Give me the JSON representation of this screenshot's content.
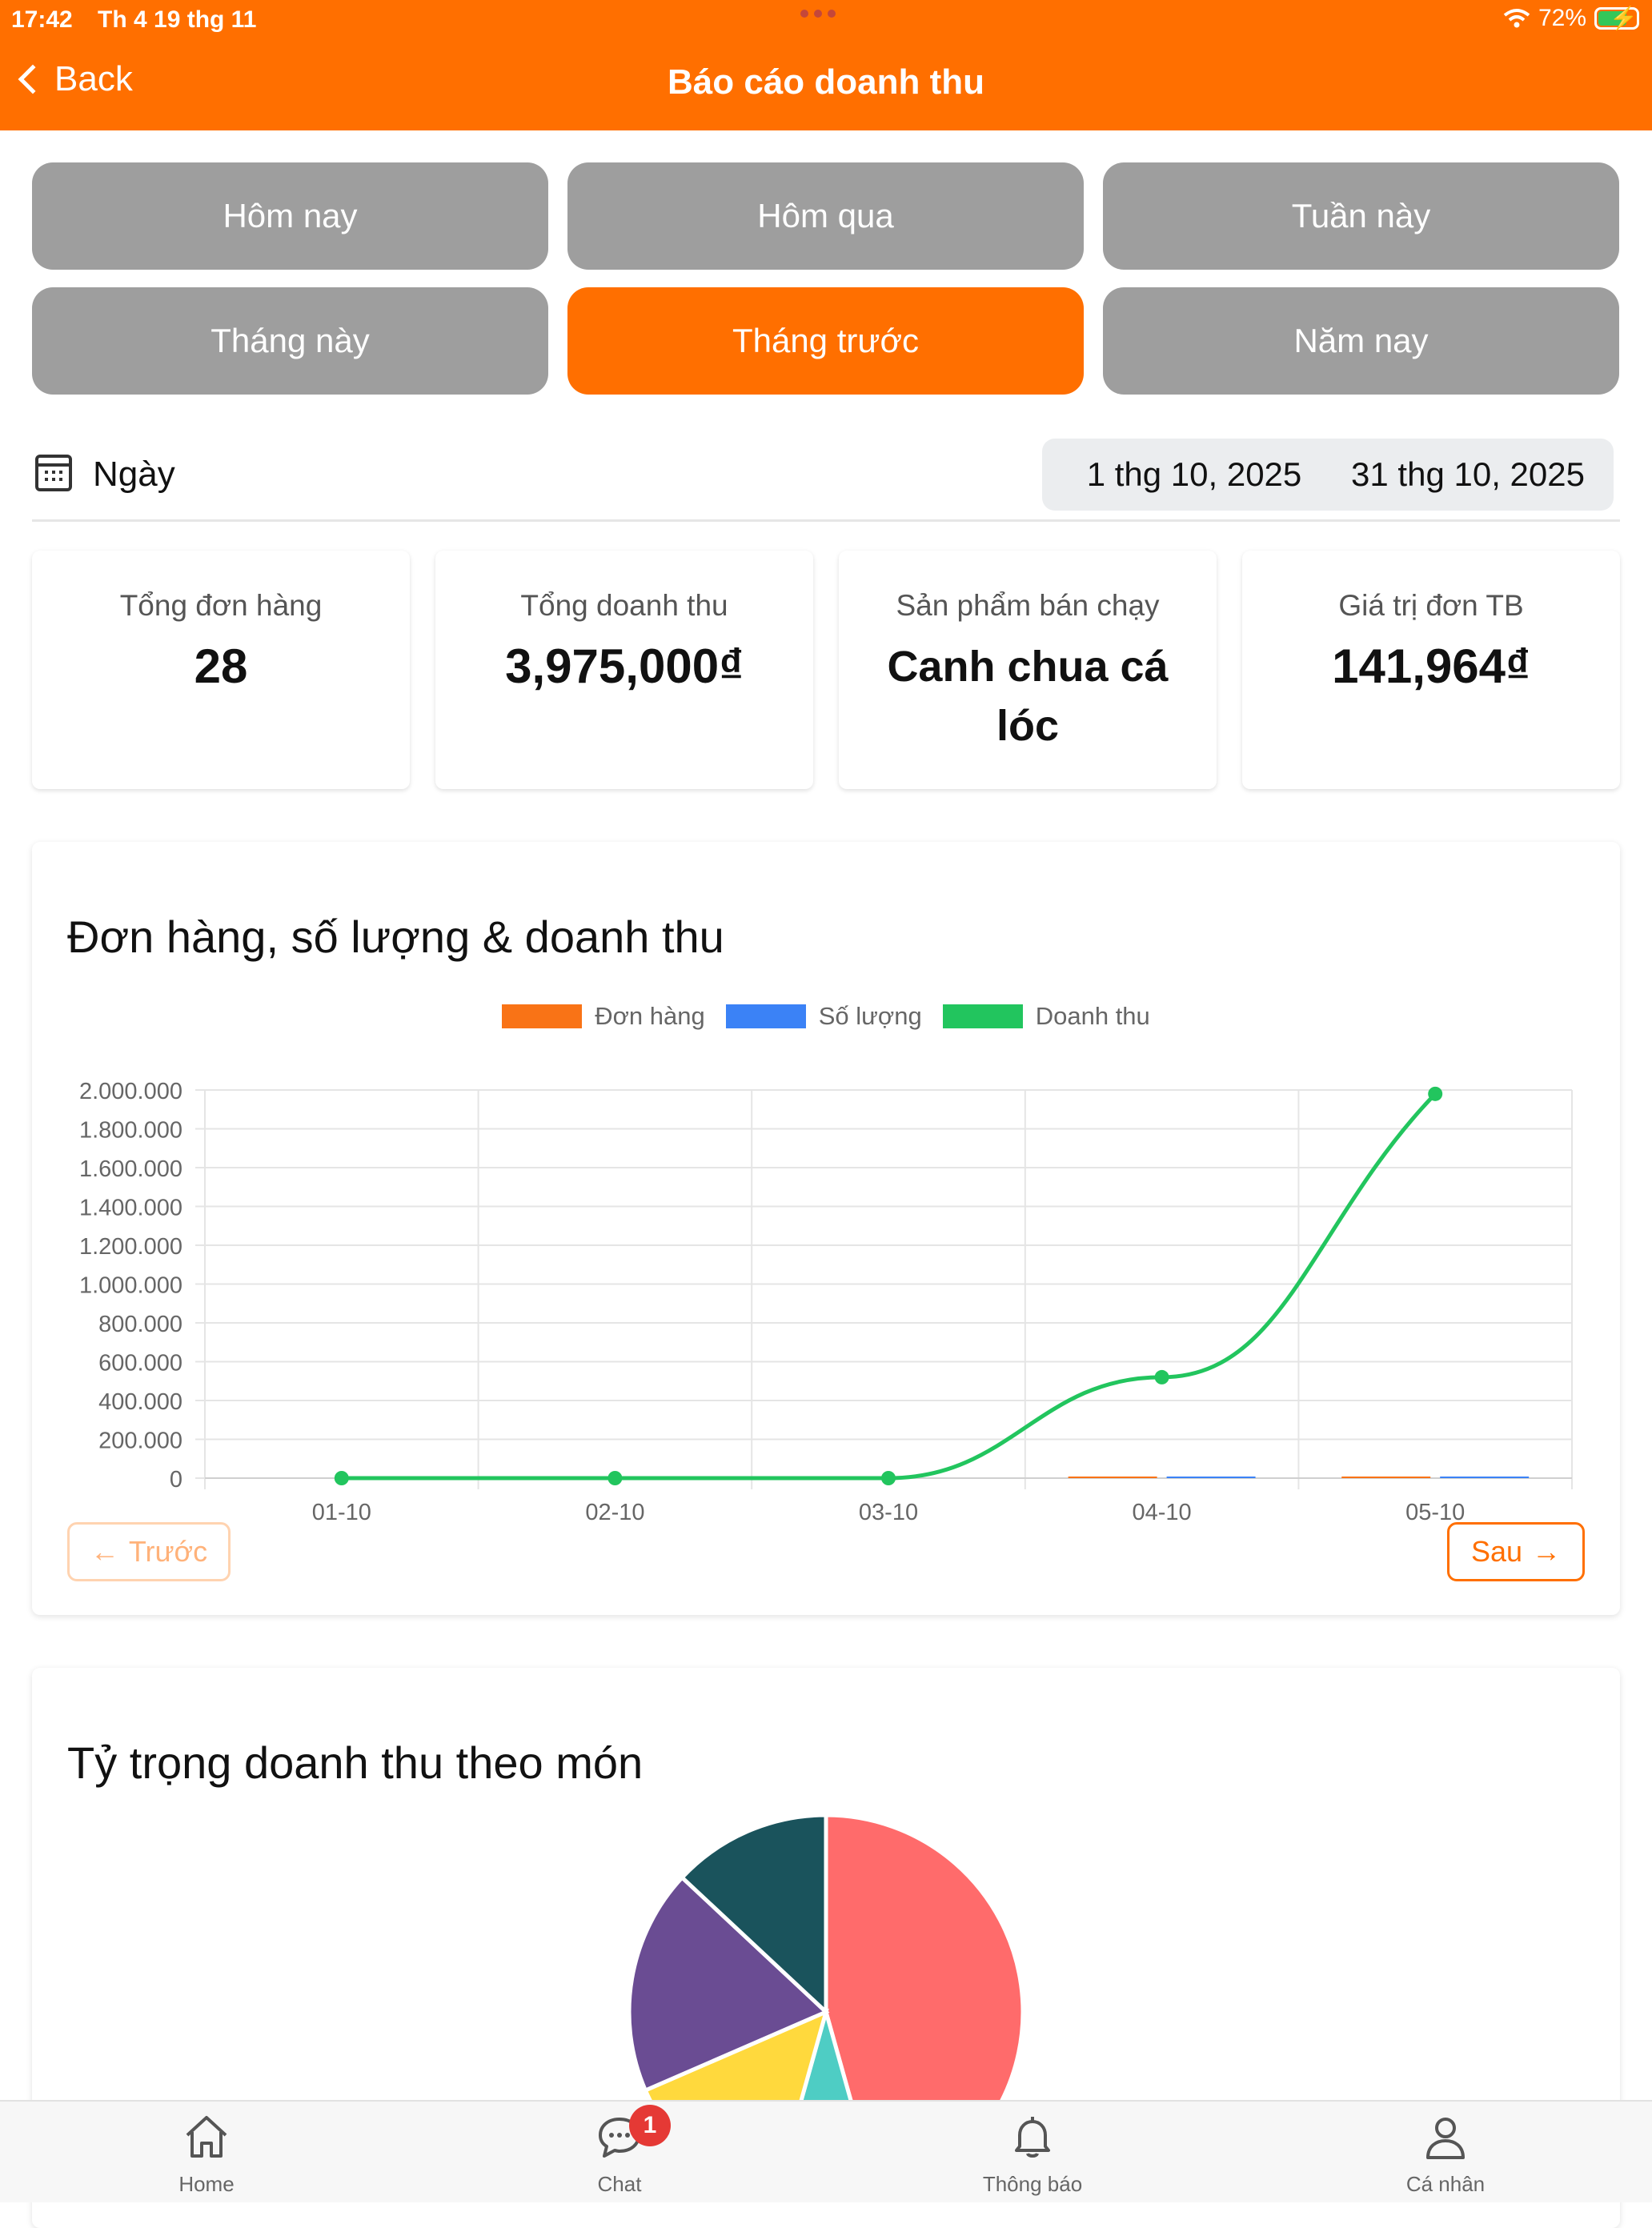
{
  "status_bar": {
    "time": "17:42",
    "date": "Th 4 19 thg 11",
    "battery": "72%"
  },
  "header": {
    "back_label": "Back",
    "title": "Báo cáo doanh thu",
    "color": "#FF6F00"
  },
  "filters": [
    {
      "label": "Hôm nay",
      "active": false
    },
    {
      "label": "Hôm qua",
      "active": false
    },
    {
      "label": "Tuần này",
      "active": false
    },
    {
      "label": "Tháng này",
      "active": false
    },
    {
      "label": "Tháng trước",
      "active": true
    },
    {
      "label": "Năm nay",
      "active": false
    }
  ],
  "date_range": {
    "label": "Ngày",
    "start": "1 thg 10, 2025",
    "end": "31 thg 10, 2025"
  },
  "stats": [
    {
      "label": "Tổng đơn hàng",
      "value": "28"
    },
    {
      "label": "Tổng doanh thu",
      "value": "3,975,000₫"
    },
    {
      "label": "Sản phẩm bán chạy",
      "value": "Canh chua cá lóc"
    },
    {
      "label": "Giá trị đơn TB",
      "value": "141,964₫"
    }
  ],
  "line_chart": {
    "title": "Đơn hàng, số lượng & doanh thu",
    "prev_label": "Trước",
    "next_label": "Sau"
  },
  "pie_chart": {
    "title": "Tỷ trọng doanh thu theo món"
  },
  "chart_data": [
    {
      "type": "line",
      "title": "Đơn hàng, số lượng & doanh thu",
      "categories": [
        "01-10",
        "02-10",
        "03-10",
        "04-10",
        "05-10"
      ],
      "ylim": [
        0,
        2000000
      ],
      "yticks": [
        "0",
        "200.000",
        "400.000",
        "600.000",
        "800.000",
        "1.000.000",
        "1.200.000",
        "1.400.000",
        "1.600.000",
        "1.800.000",
        "2.000.000"
      ],
      "grid": true,
      "legend_position": "top",
      "series": [
        {
          "name": "Đơn hàng",
          "type": "bar",
          "color": "#F97316",
          "values": [
            0,
            0,
            0,
            3,
            4
          ]
        },
        {
          "name": "Số lượng",
          "type": "bar",
          "color": "#3B82F6",
          "values": [
            0,
            0,
            0,
            4,
            5
          ]
        },
        {
          "name": "Doanh thu",
          "type": "line",
          "color": "#22C55E",
          "values": [
            0,
            0,
            0,
            520000,
            1980000
          ]
        }
      ]
    },
    {
      "type": "pie",
      "title": "Tỷ trọng doanh thu theo món",
      "slices": [
        {
          "value": 42,
          "color": "#FF6B6B"
        },
        {
          "value": 8,
          "color": "#4ECDC4"
        },
        {
          "value": 13,
          "color": "#FFD93D"
        },
        {
          "value": 17,
          "color": "#6A4C93"
        },
        {
          "value": 12,
          "color": "#1A535C"
        }
      ]
    }
  ],
  "tabbar": [
    {
      "label": "Home",
      "icon": "home-icon"
    },
    {
      "label": "Chat",
      "icon": "chat-icon",
      "badge": "1"
    },
    {
      "label": "Thông báo",
      "icon": "bell-icon"
    },
    {
      "label": "Cá nhân",
      "icon": "person-icon"
    }
  ]
}
